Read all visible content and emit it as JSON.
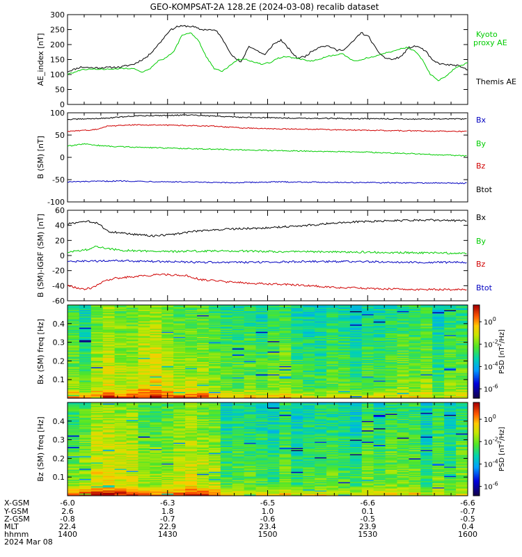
{
  "title": "GEO-KOMPSAT-2A 128.2E (2024-03-08) recalib dataset",
  "colors": {
    "black": "#000000",
    "red": "#d00000",
    "green": "#00cc00",
    "blue": "#0000c0"
  },
  "chart_data": [
    {
      "type": "line",
      "panel": "ae",
      "ylabel": "AE_index [nT]",
      "ylim": [
        0,
        300
      ],
      "yticks": [
        0,
        50,
        100,
        150,
        200,
        250,
        300
      ],
      "x_hhmm_range": [
        1400,
        1600
      ],
      "series": [
        {
          "name": "Themis AE",
          "color": "black",
          "points": [
            [
              0,
              110
            ],
            [
              5,
              125
            ],
            [
              10,
              122
            ],
            [
              20,
              125
            ],
            [
              25,
              135
            ],
            [
              30,
              160
            ],
            [
              35,
              210
            ],
            [
              38,
              245
            ],
            [
              41,
              260
            ],
            [
              44,
              262
            ],
            [
              47,
              260
            ],
            [
              50,
              250
            ],
            [
              53,
              250
            ],
            [
              56,
              245
            ],
            [
              59,
              205
            ],
            [
              62,
              160
            ],
            [
              65,
              140
            ],
            [
              68,
              195
            ],
            [
              71,
              180
            ],
            [
              74,
              165
            ],
            [
              77,
              200
            ],
            [
              80,
              215
            ],
            [
              83,
              185
            ],
            [
              86,
              155
            ],
            [
              89,
              160
            ],
            [
              92,
              180
            ],
            [
              95,
              195
            ],
            [
              98,
              195
            ],
            [
              101,
              180
            ],
            [
              104,
              185
            ],
            [
              107,
              210
            ],
            [
              110,
              240
            ],
            [
              113,
              225
            ],
            [
              116,
              180
            ],
            [
              119,
              155
            ],
            [
              122,
              150
            ],
            [
              125,
              160
            ],
            [
              128,
              190
            ],
            [
              131,
              195
            ],
            [
              134,
              180
            ],
            [
              137,
              145
            ],
            [
              140,
              135
            ],
            [
              143,
              132
            ],
            [
              146,
              130
            ],
            [
              150,
              115
            ]
          ]
        },
        {
          "name": "Kyoto proxy AE",
          "color": "green",
          "points": [
            [
              0,
              100
            ],
            [
              5,
              115
            ],
            [
              10,
              118
            ],
            [
              15,
              118
            ],
            [
              20,
              120
            ],
            [
              25,
              120
            ],
            [
              28,
              108
            ],
            [
              31,
              120
            ],
            [
              34,
              145
            ],
            [
              37,
              155
            ],
            [
              40,
              180
            ],
            [
              43,
              232
            ],
            [
              46,
              240
            ],
            [
              49,
              215
            ],
            [
              52,
              160
            ],
            [
              55,
              120
            ],
            [
              58,
              110
            ],
            [
              61,
              130
            ],
            [
              64,
              150
            ],
            [
              67,
              150
            ],
            [
              70,
              140
            ],
            [
              73,
              135
            ],
            [
              76,
              140
            ],
            [
              79,
              155
            ],
            [
              82,
              160
            ],
            [
              85,
              155
            ],
            [
              88,
              150
            ],
            [
              91,
              145
            ],
            [
              94,
              150
            ],
            [
              97,
              160
            ],
            [
              100,
              165
            ],
            [
              103,
              170
            ],
            [
              106,
              150
            ],
            [
              109,
              145
            ],
            [
              112,
              155
            ],
            [
              115,
              160
            ],
            [
              118,
              170
            ],
            [
              121,
              175
            ],
            [
              124,
              185
            ],
            [
              127,
              190
            ],
            [
              130,
              180
            ],
            [
              133,
              150
            ],
            [
              136,
              100
            ],
            [
              139,
              80
            ],
            [
              142,
              95
            ],
            [
              145,
              120
            ],
            [
              150,
              140
            ]
          ]
        }
      ]
    },
    {
      "type": "line",
      "panel": "b_sm",
      "ylabel": "B (SM) [nT]",
      "ylim": [
        -100,
        100
      ],
      "yticks": [
        -100,
        -50,
        0,
        50,
        100
      ],
      "series": [
        {
          "name": "Bx",
          "color": "blue",
          "points": [
            [
              0,
              -55
            ],
            [
              20,
              -53
            ],
            [
              40,
              -55
            ],
            [
              60,
              -57
            ],
            [
              80,
              -55
            ],
            [
              100,
              -56
            ],
            [
              120,
              -57
            ],
            [
              150,
              -58
            ]
          ]
        },
        {
          "name": "By",
          "color": "green",
          "points": [
            [
              0,
              25
            ],
            [
              6,
              30
            ],
            [
              15,
              25
            ],
            [
              30,
              22
            ],
            [
              50,
              19
            ],
            [
              70,
              16
            ],
            [
              90,
              14
            ],
            [
              110,
              12
            ],
            [
              130,
              8
            ],
            [
              150,
              3
            ]
          ]
        },
        {
          "name": "Bz",
          "color": "red",
          "points": [
            [
              0,
              58
            ],
            [
              10,
              62
            ],
            [
              15,
              70
            ],
            [
              25,
              73
            ],
            [
              40,
              72
            ],
            [
              55,
              70
            ],
            [
              65,
              66
            ],
            [
              80,
              64
            ],
            [
              100,
              62
            ],
            [
              120,
              60
            ],
            [
              150,
              58
            ]
          ]
        },
        {
          "name": "Btot",
          "color": "black",
          "points": [
            [
              0,
              85
            ],
            [
              15,
              88
            ],
            [
              25,
              93
            ],
            [
              45,
              95
            ],
            [
              65,
              90
            ],
            [
              85,
              88
            ],
            [
              105,
              87
            ],
            [
              130,
              86
            ],
            [
              150,
              86
            ]
          ]
        }
      ]
    },
    {
      "type": "line",
      "panel": "b_igrf",
      "ylabel": "B (SM)-IGRF (SM) [nT]",
      "ylim": [
        -60,
        60
      ],
      "yticks": [
        -60,
        -40,
        -20,
        0,
        20,
        40,
        60
      ],
      "series": [
        {
          "name": "Bx",
          "color": "black",
          "points": [
            [
              0,
              42
            ],
            [
              8,
              45
            ],
            [
              12,
              42
            ],
            [
              15,
              32
            ],
            [
              20,
              30
            ],
            [
              25,
              28
            ],
            [
              32,
              26
            ],
            [
              40,
              28
            ],
            [
              45,
              31
            ],
            [
              50,
              33
            ],
            [
              60,
              35
            ],
            [
              70,
              36
            ],
            [
              80,
              38
            ],
            [
              90,
              40
            ],
            [
              100,
              43
            ],
            [
              110,
              45
            ],
            [
              120,
              46
            ],
            [
              135,
              47
            ],
            [
              150,
              46
            ]
          ]
        },
        {
          "name": "By",
          "color": "green",
          "points": [
            [
              0,
              5
            ],
            [
              8,
              8
            ],
            [
              10,
              12
            ],
            [
              14,
              10
            ],
            [
              20,
              7
            ],
            [
              35,
              5
            ],
            [
              50,
              6
            ],
            [
              65,
              6
            ],
            [
              80,
              5
            ],
            [
              100,
              5
            ],
            [
              120,
              4
            ],
            [
              150,
              3
            ]
          ]
        },
        {
          "name": "Bz",
          "color": "red",
          "points": [
            [
              0,
              -40
            ],
            [
              6,
              -45
            ],
            [
              10,
              -42
            ],
            [
              13,
              -35
            ],
            [
              18,
              -30
            ],
            [
              25,
              -28
            ],
            [
              35,
              -25
            ],
            [
              45,
              -27
            ],
            [
              50,
              -32
            ],
            [
              60,
              -35
            ],
            [
              70,
              -37
            ],
            [
              80,
              -38
            ],
            [
              90,
              -40
            ],
            [
              100,
              -42
            ],
            [
              115,
              -44
            ],
            [
              130,
              -45
            ],
            [
              150,
              -45
            ]
          ]
        },
        {
          "name": "Btot",
          "color": "blue",
          "points": [
            [
              0,
              -8
            ],
            [
              20,
              -7
            ],
            [
              35,
              -8
            ],
            [
              50,
              -9
            ],
            [
              70,
              -9
            ],
            [
              90,
              -8
            ],
            [
              110,
              -8
            ],
            [
              130,
              -9
            ],
            [
              150,
              -9
            ]
          ]
        }
      ]
    },
    {
      "type": "heatmap",
      "panel": "spec_bx",
      "ylabel": "Bx (SM) freq [Hz]",
      "ylim": [
        0,
        0.5
      ],
      "yticks": [
        0.1,
        0.2,
        0.3,
        0.4
      ],
      "colorbar": {
        "label": "PSD [nT^2/Hz]",
        "ticks": [
          "10^0",
          "10^-2",
          "10^-4",
          "10^-6"
        ]
      }
    },
    {
      "type": "heatmap",
      "panel": "spec_bz",
      "ylabel": "Bz (SM) freq [Hz]",
      "ylim": [
        0,
        0.5
      ],
      "yticks": [
        0.1,
        0.2,
        0.3,
        0.4
      ],
      "colorbar": {
        "label": "PSD [nT^2/Hz]",
        "ticks": [
          "10^0",
          "10^-2",
          "10^-4",
          "10^-6"
        ]
      }
    }
  ],
  "ephemeris": {
    "rows": [
      {
        "label": "X-GSM",
        "values": [
          "-6.0",
          "-6.3",
          "-6.5",
          "-6.6",
          "-6.6"
        ]
      },
      {
        "label": "Y-GSM",
        "values": [
          "2.6",
          "1.8",
          "1.0",
          "0.1",
          "-0.7"
        ]
      },
      {
        "label": "Z-GSM",
        "values": [
          "-0.8",
          "-0.7",
          "-0.6",
          "-0.5",
          "-0.5"
        ]
      },
      {
        "label": "MLT",
        "values": [
          "22.4",
          "22.9",
          "23.4",
          "23.9",
          "0.4"
        ]
      },
      {
        "label": "hhmm",
        "values": [
          "1400",
          "1430",
          "1500",
          "1530",
          "1600"
        ]
      }
    ],
    "date": "2024 Mar 08"
  }
}
